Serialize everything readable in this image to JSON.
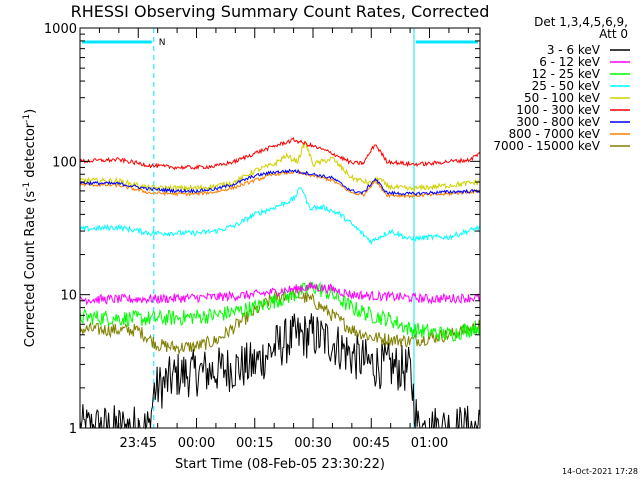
{
  "chart_data": {
    "type": "line",
    "title": "RHESSI Observing Summary Count Rates, Corrected",
    "xlabel": "Start Time (08-Feb-05 23:30:22)",
    "ylabel_main": "Corrected Count Rate (s",
    "ylabel_sup1": "-1",
    "ylabel_mid": " detector",
    "ylabel_sup2": "-1",
    "ylabel_end": ")",
    "yscale": "log",
    "ylim": [
      1,
      1000
    ],
    "y_ticks": [
      1,
      10,
      100,
      1000
    ],
    "y_tick_labels": [
      "1",
      "10",
      "100",
      "1000"
    ],
    "xlim_minutes": [
      0,
      103
    ],
    "x_ticks_minutes": [
      15,
      30,
      45,
      60,
      75,
      90
    ],
    "x_tick_labels": [
      "23:45",
      "00:00",
      "00:15",
      "00:30",
      "00:45",
      "01:00"
    ],
    "detector_info_line1": "Det 1,3,4,5,6,9,",
    "detector_info_line2": "Att 0",
    "night_intervals_minutes": [
      [
        0,
        19
      ],
      [
        86,
        103
      ]
    ],
    "saa_flag_label": "N",
    "series": [
      {
        "name": "3 - 6 keV",
        "color": "#000000",
        "values": [
          [
            0,
            1
          ],
          [
            18,
            1
          ],
          [
            19,
            1.9
          ],
          [
            25,
            2.5
          ],
          [
            35,
            2.7
          ],
          [
            45,
            3
          ],
          [
            50,
            4
          ],
          [
            55,
            4.8
          ],
          [
            60,
            5
          ],
          [
            65,
            4.4
          ],
          [
            70,
            3.5
          ],
          [
            75,
            3
          ],
          [
            80,
            2.9
          ],
          [
            85,
            2.7
          ],
          [
            87,
            1
          ],
          [
            103,
            1
          ]
        ]
      },
      {
        "name": "6 - 12 keV",
        "color": "#ff00ff",
        "values": [
          [
            0,
            9.2
          ],
          [
            20,
            9.3
          ],
          [
            35,
            9.6
          ],
          [
            45,
            10
          ],
          [
            55,
            11
          ],
          [
            60,
            11.5
          ],
          [
            65,
            11
          ],
          [
            70,
            10
          ],
          [
            75,
            9.8
          ],
          [
            82,
            9.6
          ],
          [
            90,
            9.3
          ],
          [
            103,
            9.5
          ]
        ]
      },
      {
        "name": "12 - 25 keV",
        "color": "#00ff00",
        "values": [
          [
            0,
            6.8
          ],
          [
            15,
            6.6
          ],
          [
            25,
            6.7
          ],
          [
            35,
            7
          ],
          [
            45,
            8
          ],
          [
            55,
            10
          ],
          [
            60,
            11.5
          ],
          [
            65,
            10
          ],
          [
            70,
            8
          ],
          [
            75,
            7
          ],
          [
            80,
            6.5
          ],
          [
            85,
            5.5
          ],
          [
            95,
            5
          ],
          [
            103,
            5.8
          ]
        ]
      },
      {
        "name": "25 - 50 keV",
        "color": "#00ffff",
        "values": [
          [
            0,
            31
          ],
          [
            10,
            32
          ],
          [
            18,
            29
          ],
          [
            25,
            29
          ],
          [
            30,
            29
          ],
          [
            35,
            30
          ],
          [
            40,
            33
          ],
          [
            45,
            40
          ],
          [
            50,
            45
          ],
          [
            55,
            52
          ],
          [
            57,
            65
          ],
          [
            59,
            45
          ],
          [
            63,
            45
          ],
          [
            67,
            40
          ],
          [
            72,
            30
          ],
          [
            75,
            25
          ],
          [
            77,
            27
          ],
          [
            80,
            30
          ],
          [
            85,
            26
          ],
          [
            90,
            27
          ],
          [
            95,
            27
          ],
          [
            103,
            32
          ]
        ]
      },
      {
        "name": "50 - 100 keV",
        "color": "#d0d000",
        "values": [
          [
            0,
            72
          ],
          [
            10,
            71
          ],
          [
            18,
            63
          ],
          [
            25,
            63
          ],
          [
            30,
            63
          ],
          [
            35,
            65
          ],
          [
            40,
            70
          ],
          [
            45,
            85
          ],
          [
            50,
            95
          ],
          [
            53,
            110
          ],
          [
            56,
            100
          ],
          [
            58,
            140
          ],
          [
            60,
            95
          ],
          [
            65,
            105
          ],
          [
            70,
            75
          ],
          [
            75,
            68
          ],
          [
            77,
            75
          ],
          [
            79,
            65
          ],
          [
            85,
            62
          ],
          [
            90,
            64
          ],
          [
            95,
            66
          ],
          [
            103,
            70
          ]
        ]
      },
      {
        "name": "100 - 300 keV",
        "color": "#ff0000",
        "values": [
          [
            0,
            100
          ],
          [
            10,
            103
          ],
          [
            18,
            93
          ],
          [
            25,
            90
          ],
          [
            30,
            90
          ],
          [
            35,
            92
          ],
          [
            40,
            100
          ],
          [
            45,
            115
          ],
          [
            50,
            130
          ],
          [
            55,
            145
          ],
          [
            60,
            130
          ],
          [
            65,
            115
          ],
          [
            70,
            97
          ],
          [
            73,
            97
          ],
          [
            76,
            135
          ],
          [
            79,
            100
          ],
          [
            85,
            95
          ],
          [
            90,
            96
          ],
          [
            95,
            100
          ],
          [
            100,
            102
          ],
          [
            103,
            115
          ]
        ]
      },
      {
        "name": "300 - 800 keV",
        "color": "#0000ff",
        "values": [
          [
            0,
            69
          ],
          [
            10,
            68
          ],
          [
            18,
            62
          ],
          [
            25,
            60
          ],
          [
            30,
            60
          ],
          [
            35,
            62
          ],
          [
            40,
            68
          ],
          [
            45,
            78
          ],
          [
            50,
            83
          ],
          [
            55,
            85
          ],
          [
            60,
            80
          ],
          [
            65,
            75
          ],
          [
            70,
            60
          ],
          [
            73,
            58
          ],
          [
            76,
            74
          ],
          [
            79,
            58
          ],
          [
            85,
            57
          ],
          [
            90,
            58
          ],
          [
            95,
            59
          ],
          [
            103,
            60
          ]
        ]
      },
      {
        "name": "800 - 7000 keV",
        "color": "#ff8000",
        "values": [
          [
            0,
            67
          ],
          [
            10,
            66
          ],
          [
            18,
            58
          ],
          [
            25,
            57
          ],
          [
            30,
            57
          ],
          [
            35,
            59
          ],
          [
            40,
            64
          ],
          [
            45,
            72
          ],
          [
            50,
            80
          ],
          [
            55,
            83
          ],
          [
            60,
            78
          ],
          [
            65,
            72
          ],
          [
            70,
            58
          ],
          [
            73,
            56
          ],
          [
            76,
            72
          ],
          [
            79,
            56
          ],
          [
            85,
            55
          ],
          [
            90,
            56
          ],
          [
            95,
            57
          ],
          [
            103,
            60
          ]
        ]
      },
      {
        "name": "7000 - 15000 keV",
        "color": "#808000",
        "values": [
          [
            0,
            5.5
          ],
          [
            15,
            5.4
          ],
          [
            20,
            4.2
          ],
          [
            25,
            4
          ],
          [
            30,
            4.1
          ],
          [
            35,
            4.5
          ],
          [
            40,
            5.8
          ],
          [
            45,
            7.5
          ],
          [
            50,
            9.5
          ],
          [
            55,
            10.2
          ],
          [
            60,
            9
          ],
          [
            65,
            7
          ],
          [
            70,
            5.5
          ],
          [
            75,
            4.8
          ],
          [
            80,
            4.6
          ],
          [
            85,
            4.5
          ],
          [
            95,
            5
          ],
          [
            103,
            5.8
          ]
        ]
      }
    ]
  },
  "footer": {
    "generated": "14-Oct-2021 17:28"
  }
}
